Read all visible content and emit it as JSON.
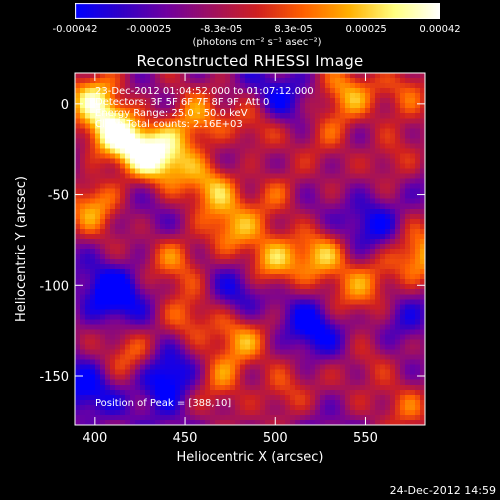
{
  "colorbar": {
    "ticks": [
      "-0.00042",
      "-0.00025",
      "-8.3e-05",
      "8.3e-05",
      "0.00025",
      "0.00042"
    ],
    "tick_values": [
      -0.00042,
      -0.00025,
      -8.3e-05,
      8.3e-05,
      0.00025,
      0.00042
    ],
    "range": [
      -0.00042,
      0.00042
    ],
    "units": "(photons cm⁻² s⁻¹ asec⁻²)",
    "colors": [
      "#0000ff",
      "#3000c8",
      "#7000a0",
      "#a01060",
      "#d02020",
      "#ff6000",
      "#ffb000",
      "#ffff80",
      "#ffffff"
    ]
  },
  "annotations": {
    "time_range": "23-Dec-2012 01:04:52.000 to 01:07:12.000",
    "detectors": "Detectors: 3F 5F 6F 7F 8F 9F, Att 0",
    "energy": "Energy Range: 25.0 - 50.0 keV",
    "clean": "Clean    Total counts: 2.16E+03",
    "peak": "Position of Peak = [388,10]"
  },
  "footer_date": "24-Dec-2012 14:59",
  "chart_data": {
    "type": "heatmap",
    "title": "Reconstructed RHESSI Image",
    "xlabel": "Heliocentric X (arcsec)",
    "ylabel": "Heliocentric Y (arcsec)",
    "xlim": [
      389,
      583
    ],
    "ylim": [
      -177,
      17
    ],
    "x_ticks": [
      400,
      450,
      500,
      550
    ],
    "y_ticks": [
      0,
      -50,
      -100,
      -150
    ],
    "peak_position": [
      388,
      10
    ],
    "bright_sources": [
      {
        "x": 400,
        "y": 5,
        "level": 0.95
      },
      {
        "x": 410,
        "y": -15,
        "level": 0.9
      },
      {
        "x": 425,
        "y": -25,
        "level": 0.85
      },
      {
        "x": 440,
        "y": -30,
        "level": 0.8
      },
      {
        "x": 455,
        "y": -10,
        "level": 0.75
      },
      {
        "x": 465,
        "y": -45,
        "level": 0.7
      },
      {
        "x": 400,
        "y": -55,
        "level": 0.75
      },
      {
        "x": 490,
        "y": -10,
        "level": 0.5
      },
      {
        "x": 530,
        "y": -15,
        "level": 0.45
      },
      {
        "x": 540,
        "y": 5,
        "level": 0.65
      },
      {
        "x": 575,
        "y": 10,
        "level": 0.55
      },
      {
        "x": 565,
        "y": -30,
        "level": 0.5
      },
      {
        "x": 500,
        "y": -50,
        "level": 0.55
      },
      {
        "x": 475,
        "y": -70,
        "level": 0.7
      },
      {
        "x": 497,
        "y": -90,
        "level": 0.8
      },
      {
        "x": 525,
        "y": -82,
        "level": 0.75
      },
      {
        "x": 555,
        "y": -95,
        "level": 0.5
      },
      {
        "x": 580,
        "y": -85,
        "level": 0.85
      },
      {
        "x": 445,
        "y": -85,
        "level": 0.55
      },
      {
        "x": 450,
        "y": -120,
        "level": 0.6
      },
      {
        "x": 480,
        "y": -130,
        "level": 0.65
      },
      {
        "x": 470,
        "y": -150,
        "level": 0.6
      },
      {
        "x": 505,
        "y": -160,
        "level": 0.55
      },
      {
        "x": 420,
        "y": -140,
        "level": 0.5
      },
      {
        "x": 555,
        "y": -140,
        "level": 0.45
      },
      {
        "x": 575,
        "y": -165,
        "level": 0.5
      },
      {
        "x": 540,
        "y": -110,
        "level": 0.35
      }
    ],
    "dark_sources": [
      {
        "x": 440,
        "y": -150,
        "level": -0.9
      },
      {
        "x": 410,
        "y": -105,
        "level": -0.7
      },
      {
        "x": 520,
        "y": -125,
        "level": -0.6
      },
      {
        "x": 500,
        "y": 0,
        "level": -0.5
      },
      {
        "x": 555,
        "y": -65,
        "level": -0.55
      },
      {
        "x": 480,
        "y": -105,
        "level": -0.5
      },
      {
        "x": 570,
        "y": -120,
        "level": -0.45
      },
      {
        "x": 395,
        "y": -160,
        "level": -0.5
      }
    ]
  }
}
